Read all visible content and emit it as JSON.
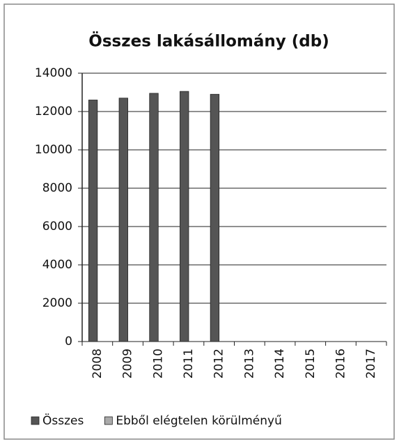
{
  "chart_data": {
    "type": "bar",
    "title": "Összes lakásállomány (db)",
    "categories": [
      "2008",
      "2009",
      "2010",
      "2011",
      "2012",
      "2013",
      "2014",
      "2015",
      "2016",
      "2017"
    ],
    "series": [
      {
        "name": "Összes",
        "color": "#555555",
        "values": [
          12600,
          12700,
          12950,
          13050,
          12900,
          null,
          null,
          null,
          null,
          null
        ]
      },
      {
        "name": "Ebből elégtelen körülményű",
        "color": "#aaaaaa",
        "values": [
          null,
          null,
          null,
          null,
          null,
          null,
          null,
          null,
          null,
          null
        ]
      }
    ],
    "ylim": [
      0,
      14000
    ],
    "yticks": [
      0,
      2000,
      4000,
      6000,
      8000,
      10000,
      12000,
      14000
    ],
    "grid": true,
    "legend": "bottom"
  }
}
